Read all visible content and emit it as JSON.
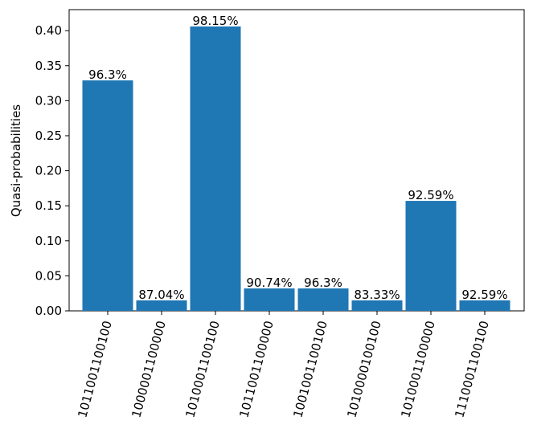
{
  "chart_data": {
    "type": "bar",
    "title": "",
    "xlabel": "",
    "ylabel": "Quasi-probabilities",
    "ylim": [
      0,
      0.43
    ],
    "yticks": [
      0.0,
      0.05,
      0.1,
      0.15,
      0.2,
      0.25,
      0.3,
      0.35,
      0.4
    ],
    "ytick_labels": [
      "0.00",
      "0.05",
      "0.10",
      "0.15",
      "0.20",
      "0.25",
      "0.30",
      "0.35",
      "0.40"
    ],
    "categories": [
      "1011001100100",
      "1000001100000",
      "1010001100100",
      "1011001100000",
      "1001001100100",
      "1010000100100",
      "1010001100000",
      "1110001100100"
    ],
    "values": [
      0.329,
      0.015,
      0.406,
      0.032,
      0.032,
      0.015,
      0.157,
      0.015
    ],
    "bar_labels": [
      "96.3%",
      "87.04%",
      "98.15%",
      "90.74%",
      "96.3%",
      "83.33%",
      "92.59%",
      "92.59%"
    ],
    "bar_color": "#1f77b4",
    "grid": false,
    "legend": "none"
  }
}
